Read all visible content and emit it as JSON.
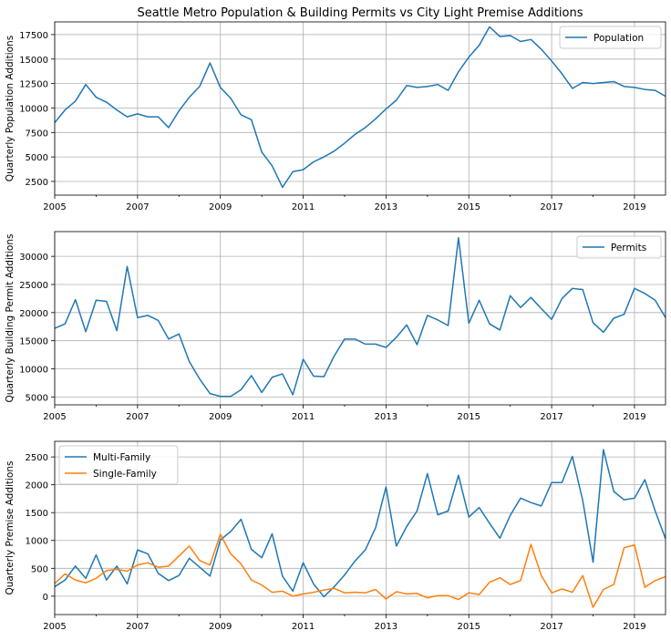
{
  "figure": {
    "title": "Seattle Metro Population & Building Permits vs City Light Premise Additions"
  },
  "colors": {
    "blue": "#1f77b4",
    "orange": "#ff7f0e",
    "grid": "#b0b0b0"
  },
  "chart_data": [
    {
      "type": "line",
      "title": "Seattle Metro Population & Building Permits vs City Light Premise Additions",
      "xlabel": "",
      "ylabel": "Quarterly Population Additions",
      "xlim": [
        2005.0,
        2019.75
      ],
      "ylim": [
        1100,
        18800
      ],
      "x_ticks": [
        2005,
        2007,
        2009,
        2011,
        2013,
        2015,
        2017,
        2019
      ],
      "y_ticks": [
        2500,
        5000,
        7500,
        10000,
        12500,
        15000,
        17500
      ],
      "grid": true,
      "legend": "top-right",
      "series": [
        {
          "name": "Population",
          "color": "#1f77b4",
          "x_start": 2005.0,
          "x_step": 0.25,
          "values": [
            8500,
            9800,
            10700,
            12400,
            11100,
            10600,
            9800,
            9100,
            9400,
            9100,
            9100,
            8000,
            9700,
            11100,
            12200,
            14600,
            12100,
            11000,
            9300,
            8800,
            5500,
            4100,
            1900,
            3500,
            3700,
            4500,
            5000,
            5600,
            6400,
            7300,
            8000,
            8900,
            9900,
            10800,
            12300,
            12100,
            12200,
            12400,
            11800,
            13700,
            15200,
            16400,
            18300,
            17300,
            17400,
            16800,
            17000,
            16000,
            14800,
            13500,
            12000,
            12600,
            12500,
            12600,
            12700,
            12200,
            12100,
            11900,
            11800,
            11200
          ]
        }
      ]
    },
    {
      "type": "line",
      "xlabel": "",
      "ylabel": "Quarterly Building Permit Additions",
      "xlim": [
        2005.0,
        2019.75
      ],
      "ylim": [
        3600,
        34400
      ],
      "x_ticks": [
        2005,
        2007,
        2009,
        2011,
        2013,
        2015,
        2017,
        2019
      ],
      "y_ticks": [
        5000,
        10000,
        15000,
        20000,
        25000,
        30000
      ],
      "grid": true,
      "legend": "top-right",
      "series": [
        {
          "name": "Permits",
          "color": "#1f77b4",
          "x_start": 2005.0,
          "x_step": 0.25,
          "values": [
            17200,
            18000,
            22300,
            16600,
            22200,
            22000,
            16800,
            28200,
            19100,
            19500,
            18600,
            15300,
            16200,
            11300,
            8200,
            5600,
            5100,
            5100,
            6300,
            8800,
            5800,
            8500,
            9100,
            5400,
            11700,
            8700,
            8600,
            12300,
            15300,
            15300,
            14400,
            14400,
            13800,
            15600,
            17800,
            14300,
            19500,
            18700,
            17700,
            33300,
            18100,
            22200,
            18000,
            16900,
            23000,
            20900,
            22700,
            20700,
            18800,
            22500,
            24300,
            24100,
            18200,
            16500,
            19000,
            19700,
            24300,
            23400,
            22200,
            19100
          ]
        }
      ]
    },
    {
      "type": "line",
      "xlabel": "",
      "ylabel": "Quarterly Premise Additions",
      "xlim": [
        2005.0,
        2019.75
      ],
      "ylim": [
        -330,
        2780
      ],
      "x_ticks": [
        2005,
        2007,
        2009,
        2011,
        2013,
        2015,
        2017,
        2019
      ],
      "y_ticks": [
        0,
        500,
        1000,
        1500,
        2000,
        2500
      ],
      "grid": true,
      "legend": "top-left",
      "series": [
        {
          "name": "Multi-Family",
          "color": "#1f77b4",
          "x_start": 2005.0,
          "x_step": 0.25,
          "values": [
            170,
            290,
            540,
            320,
            740,
            290,
            540,
            220,
            830,
            760,
            410,
            280,
            370,
            680,
            520,
            360,
            1010,
            1160,
            1380,
            840,
            690,
            1120,
            360,
            90,
            600,
            220,
            -10,
            170,
            380,
            630,
            830,
            1230,
            1960,
            900,
            1250,
            1530,
            2200,
            1460,
            1530,
            2170,
            1420,
            1590,
            1310,
            1040,
            1450,
            1760,
            1680,
            1620,
            2040,
            2040,
            2510,
            1720,
            610,
            2630,
            1880,
            1730,
            1760,
            2090,
            1530,
            1030
          ]
        },
        {
          "name": "Single-Family",
          "color": "#ff7f0e",
          "x_start": 2005.0,
          "x_step": 0.25,
          "values": [
            230,
            400,
            290,
            240,
            320,
            460,
            480,
            450,
            560,
            600,
            520,
            540,
            720,
            900,
            640,
            560,
            1110,
            760,
            580,
            290,
            200,
            70,
            90,
            0,
            40,
            70,
            110,
            140,
            60,
            70,
            60,
            120,
            -50,
            80,
            40,
            50,
            -30,
            10,
            10,
            -60,
            60,
            30,
            250,
            330,
            210,
            280,
            930,
            370,
            60,
            130,
            70,
            370,
            -200,
            120,
            210,
            870,
            920,
            160,
            280,
            350
          ]
        }
      ]
    }
  ]
}
